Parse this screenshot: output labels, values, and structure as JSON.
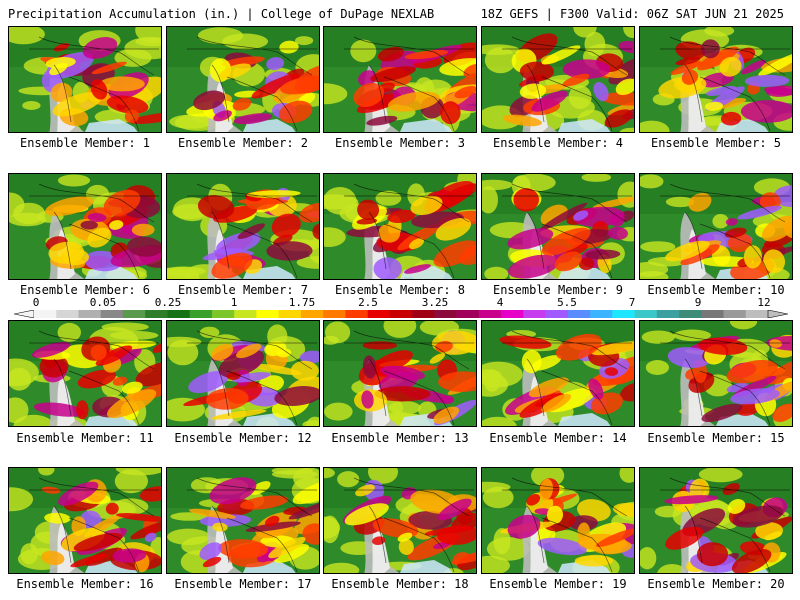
{
  "header": {
    "title_left": "Precipitation Accumulation (in.) | College of DuPage NEXLAB",
    "title_right": "18Z GEFS | F300 Valid: 06Z SAT JUN 21 2025"
  },
  "panels": [
    {
      "label": "Ensemble Member: 1"
    },
    {
      "label": "Ensemble Member: 2"
    },
    {
      "label": "Ensemble Member: 3"
    },
    {
      "label": "Ensemble Member: 4"
    },
    {
      "label": "Ensemble Member: 5"
    },
    {
      "label": "Ensemble Member: 6"
    },
    {
      "label": "Ensemble Member: 7"
    },
    {
      "label": "Ensemble Member: 8"
    },
    {
      "label": "Ensemble Member: 9"
    },
    {
      "label": "Ensemble Member: 10"
    },
    {
      "label": "Ensemble Member: 11"
    },
    {
      "label": "Ensemble Member: 12"
    },
    {
      "label": "Ensemble Member: 13"
    },
    {
      "label": "Ensemble Member: 14"
    },
    {
      "label": "Ensemble Member: 15"
    },
    {
      "label": "Ensemble Member: 16"
    },
    {
      "label": "Ensemble Member: 17"
    },
    {
      "label": "Ensemble Member: 18"
    },
    {
      "label": "Ensemble Member: 19"
    },
    {
      "label": "Ensemble Member: 20"
    }
  ],
  "colorbar": {
    "labels": [
      "0",
      "0.05",
      "0.25",
      "1",
      "1.75",
      "2.5",
      "3.25",
      "4",
      "5.5",
      "7",
      "9",
      "12"
    ],
    "colors": [
      "#f4f4f4",
      "#d6d6d6",
      "#b0b0b0",
      "#888888",
      "#5a9a4e",
      "#2e7d2a",
      "#157315",
      "#3aa02c",
      "#7cc62a",
      "#c8e620",
      "#ffff00",
      "#ffd700",
      "#ffa500",
      "#ff7a00",
      "#ff3c00",
      "#e60000",
      "#c80000",
      "#a00014",
      "#8c0a3c",
      "#a0005a",
      "#c8008c",
      "#e600c8",
      "#c83cf0",
      "#a05aff",
      "#5a8cff",
      "#3cb4ff",
      "#1ee6ff",
      "#3cc8c8",
      "#3ca0a0",
      "#3c8c78",
      "#787878",
      "#9a9a9a",
      "#bdbdbd"
    ]
  }
}
